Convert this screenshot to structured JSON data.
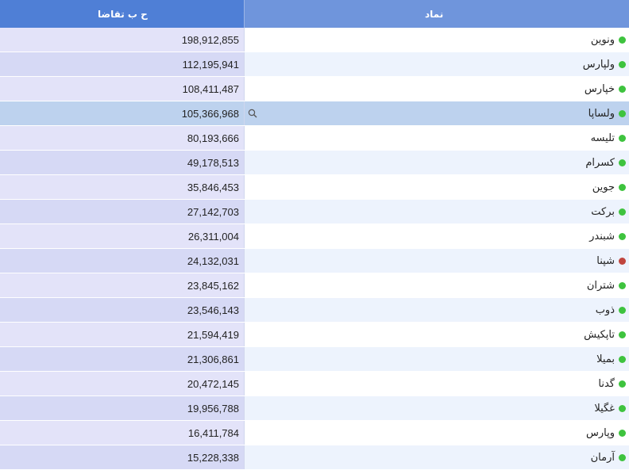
{
  "header": {
    "demand_col": "ح ب تقاضا",
    "symbol_col": "نماد"
  },
  "colors": {
    "positive": "#3ec33e",
    "negative": "#c0453e"
  },
  "rows": [
    {
      "symbol": "ونوین",
      "value": "198,912,855",
      "status": "positive"
    },
    {
      "symbol": "ولپارس",
      "value": "112,195,941",
      "status": "positive"
    },
    {
      "symbol": "خپارس",
      "value": "108,411,487",
      "status": "positive"
    },
    {
      "symbol": "ولساپا",
      "value": "105,366,968",
      "status": "positive",
      "selected": true
    },
    {
      "symbol": "تلیسه",
      "value": "80,193,666",
      "status": "positive"
    },
    {
      "symbol": "کسرام",
      "value": "49,178,513",
      "status": "positive"
    },
    {
      "symbol": "جوین",
      "value": "35,846,453",
      "status": "positive"
    },
    {
      "symbol": "برکت",
      "value": "27,142,703",
      "status": "positive"
    },
    {
      "symbol": "شبندر",
      "value": "26,311,004",
      "status": "positive"
    },
    {
      "symbol": "شپنا",
      "value": "24,132,031",
      "status": "negative"
    },
    {
      "symbol": "شتران",
      "value": "23,845,162",
      "status": "positive"
    },
    {
      "symbol": "ذوب",
      "value": "23,546,143",
      "status": "positive"
    },
    {
      "symbol": "تاپکیش",
      "value": "21,594,419",
      "status": "positive"
    },
    {
      "symbol": "بمیلا",
      "value": "21,306,861",
      "status": "positive"
    },
    {
      "symbol": "گدنا",
      "value": "20,472,145",
      "status": "positive"
    },
    {
      "symbol": "غگیلا",
      "value": "19,956,788",
      "status": "positive"
    },
    {
      "symbol": "وپارس",
      "value": "16,411,784",
      "status": "positive"
    },
    {
      "symbol": "آرمان",
      "value": "15,228,338",
      "status": "positive"
    }
  ]
}
